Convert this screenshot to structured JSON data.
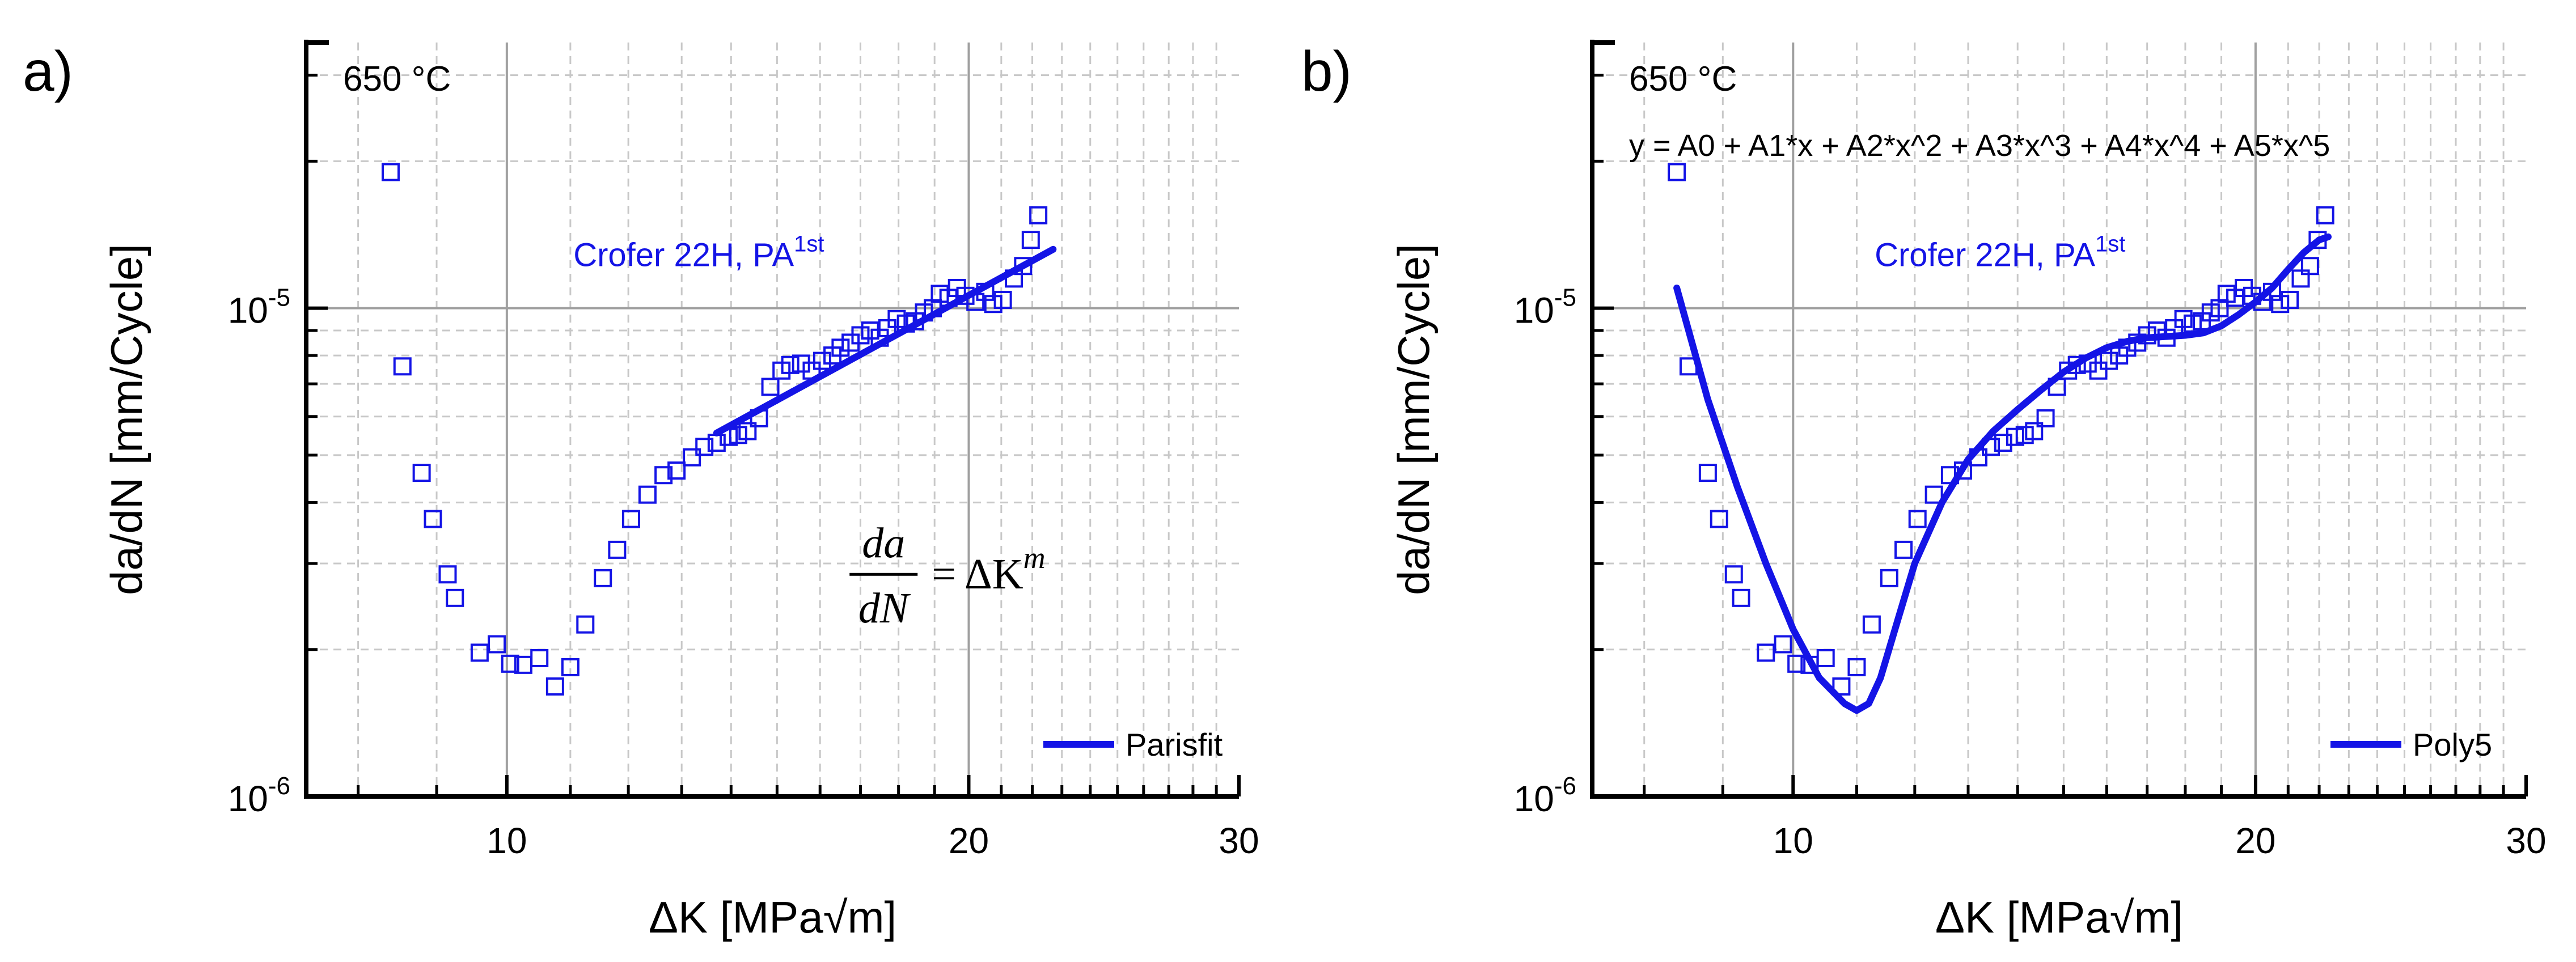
{
  "colors": {
    "data": "#1414e6",
    "axis": "#000000",
    "grid_major": "#a0a0a0",
    "grid_minor": "#c8c8c8"
  },
  "panels": [
    {
      "panel_label": "a)",
      "temperature": "650 °C",
      "series_label": "Crofer 22H, PA",
      "series_sup": "1st",
      "equation_label": "",
      "legend_label": "Parisfit",
      "formula": {
        "numerator": "da",
        "denominator": "dN",
        "rhs": "= ΔK",
        "exponent": "m"
      },
      "xlabel": "ΔK [MPa√m]",
      "ylabel": "da/dN [mm/Cycle]",
      "xticks": [
        "10",
        "20",
        "30"
      ],
      "yticks": [
        {
          "base": "10",
          "exp": "-6"
        },
        {
          "base": "10",
          "exp": "-5"
        }
      ]
    },
    {
      "panel_label": "b)",
      "temperature": "650 °C",
      "series_label": "Crofer 22H, PA",
      "series_sup": "1st",
      "equation_label": "y = A0 + A1*x + A2*x^2 + A3*x^3 + A4*x^4 + A5*x^5",
      "legend_label": "Poly5",
      "formula": null,
      "xlabel": "ΔK [MPa√m]",
      "ylabel": "da/dN [mm/Cycle]",
      "xticks": [
        "10",
        "20",
        "30"
      ],
      "yticks": [
        {
          "base": "10",
          "exp": "-6"
        },
        {
          "base": "10",
          "exp": "-5"
        }
      ]
    }
  ],
  "chart_data": [
    {
      "type": "scatter",
      "title": "a) 650 °C",
      "xlabel": "ΔK [MPa√m]",
      "ylabel": "da/dN [mm/Cycle]",
      "xscale": "log",
      "yscale": "log",
      "xlim": [
        7.4,
        30
      ],
      "ylim": [
        1e-06,
        3.5e-05
      ],
      "grid": true,
      "legend_position": "bottom-right",
      "series": [
        {
          "name": "Crofer 22H, PA1st (data)",
          "marker": "open-square",
          "x": [
            8.4,
            8.55,
            8.8,
            8.95,
            9.15,
            9.25,
            9.6,
            9.85,
            10.05,
            10.25,
            10.5,
            10.75,
            11.0,
            11.25,
            11.55,
            11.8,
            12.05,
            12.35,
            12.65,
            12.9,
            13.2,
            13.45,
            13.7,
            13.95,
            14.15,
            14.35,
            14.6,
            14.85,
            15.1,
            15.3,
            15.55,
            15.8,
            16.05,
            16.3,
            16.5,
            16.75,
            17.0,
            17.25,
            17.5,
            17.7,
            17.95,
            18.2,
            18.45,
            18.7,
            18.95,
            19.15,
            19.4,
            19.65,
            19.9,
            20.2,
            20.5,
            20.75,
            21.05,
            21.4,
            21.7,
            21.95,
            22.2
          ],
          "y": [
            1.9e-05,
            7.6e-06,
            4.6e-06,
            3.7e-06,
            2.85e-06,
            2.55e-06,
            1.97e-06,
            2.05e-06,
            1.87e-06,
            1.86e-06,
            1.92e-06,
            1.68e-06,
            1.84e-06,
            2.25e-06,
            2.8e-06,
            3.2e-06,
            3.7e-06,
            4.15e-06,
            4.55e-06,
            4.65e-06,
            4.95e-06,
            5.2e-06,
            5.3e-06,
            5.45e-06,
            5.5e-06,
            5.6e-06,
            5.95e-06,
            6.9e-06,
            7.45e-06,
            7.65e-06,
            7.7e-06,
            7.45e-06,
            7.8e-06,
            8e-06,
            8.3e-06,
            8.5e-06,
            8.8e-06,
            9e-06,
            8.7e-06,
            9.1e-06,
            9.5e-06,
            9.3e-06,
            9.4e-06,
            9.8e-06,
            1e-05,
            1.07e-05,
            1.05e-05,
            1.1e-05,
            1.06e-05,
            1.03e-05,
            1.08e-05,
            1.02e-05,
            1.04e-05,
            1.15e-05,
            1.22e-05,
            1.38e-05,
            1.55e-05
          ]
        },
        {
          "name": "Parisfit",
          "line": "solid",
          "x": [
            13.7,
            22.7
          ],
          "y": [
            5.55e-06,
            1.32e-05
          ]
        }
      ]
    },
    {
      "type": "scatter",
      "title": "b) 650 °C",
      "xlabel": "ΔK [MPa√m]",
      "ylabel": "da/dN [mm/Cycle]",
      "xscale": "log",
      "yscale": "log",
      "xlim": [
        7.4,
        30
      ],
      "ylim": [
        1e-06,
        3.5e-05
      ],
      "grid": true,
      "legend_position": "bottom-right",
      "series": [
        {
          "name": "Crofer 22H, PA1st (data)",
          "marker": "open-square",
          "x": [
            8.4,
            8.55,
            8.8,
            8.95,
            9.15,
            9.25,
            9.6,
            9.85,
            10.05,
            10.25,
            10.5,
            10.75,
            11.0,
            11.25,
            11.55,
            11.8,
            12.05,
            12.35,
            12.65,
            12.9,
            13.2,
            13.45,
            13.7,
            13.95,
            14.15,
            14.35,
            14.6,
            14.85,
            15.1,
            15.3,
            15.55,
            15.8,
            16.05,
            16.3,
            16.5,
            16.75,
            17.0,
            17.25,
            17.5,
            17.7,
            17.95,
            18.2,
            18.45,
            18.7,
            18.95,
            19.15,
            19.4,
            19.65,
            19.9,
            20.2,
            20.5,
            20.75,
            21.05,
            21.4,
            21.7,
            21.95,
            22.2
          ],
          "y": [
            1.9e-05,
            7.6e-06,
            4.6e-06,
            3.7e-06,
            2.85e-06,
            2.55e-06,
            1.97e-06,
            2.05e-06,
            1.87e-06,
            1.86e-06,
            1.92e-06,
            1.68e-06,
            1.84e-06,
            2.25e-06,
            2.8e-06,
            3.2e-06,
            3.7e-06,
            4.15e-06,
            4.55e-06,
            4.65e-06,
            4.95e-06,
            5.2e-06,
            5.3e-06,
            5.45e-06,
            5.5e-06,
            5.6e-06,
            5.95e-06,
            6.9e-06,
            7.45e-06,
            7.65e-06,
            7.7e-06,
            7.45e-06,
            7.8e-06,
            8e-06,
            8.3e-06,
            8.5e-06,
            8.8e-06,
            9e-06,
            8.7e-06,
            9.1e-06,
            9.5e-06,
            9.3e-06,
            9.4e-06,
            9.8e-06,
            1e-05,
            1.07e-05,
            1.05e-05,
            1.1e-05,
            1.06e-05,
            1.03e-05,
            1.08e-05,
            1.02e-05,
            1.04e-05,
            1.15e-05,
            1.22e-05,
            1.38e-05,
            1.55e-05
          ]
        },
        {
          "name": "Poly5",
          "line": "solid",
          "x": [
            8.4,
            8.8,
            9.2,
            9.6,
            10.0,
            10.4,
            10.8,
            11.0,
            11.2,
            11.4,
            11.7,
            12.0,
            12.5,
            13.0,
            13.5,
            14.0,
            14.5,
            15.0,
            15.5,
            16.0,
            16.5,
            17.0,
            17.5,
            18.0,
            18.5,
            19.0,
            19.5,
            20.0,
            20.5,
            21.0,
            21.5,
            22.0,
            22.3
          ],
          "y": [
            1.1e-05,
            6.5e-06,
            4.3e-06,
            3e-06,
            2.2e-06,
            1.75e-06,
            1.55e-06,
            1.5e-06,
            1.55e-06,
            1.75e-06,
            2.3e-06,
            3e-06,
            4e-06,
            4.9e-06,
            5.6e-06,
            6.2e-06,
            6.8e-06,
            7.4e-06,
            7.9e-06,
            8.3e-06,
            8.55e-06,
            8.7e-06,
            8.75e-06,
            8.8e-06,
            8.9e-06,
            9.2e-06,
            9.7e-06,
            1.03e-05,
            1.1e-05,
            1.2e-05,
            1.3e-05,
            1.38e-05,
            1.4e-05
          ]
        }
      ]
    }
  ]
}
